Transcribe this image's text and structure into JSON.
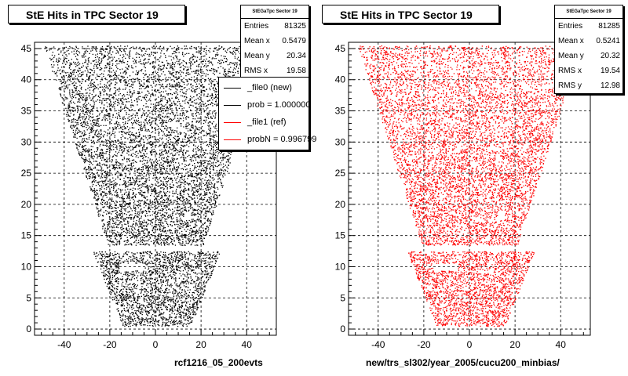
{
  "panels": [
    {
      "title": "StE Hits in TPC Sector 19",
      "stats_name": "StEGaTpc Sector 19",
      "stats": [
        {
          "label": "Entries",
          "value": "81325"
        },
        {
          "label": "Mean x",
          "value": "0.5479"
        },
        {
          "label": "Mean y",
          "value": "20.34"
        },
        {
          "label": "RMS x",
          "value": "19.58"
        }
      ],
      "xlabel": "rcf1216_05_200evts",
      "color": "#000000",
      "legend": [
        {
          "label": "_file0 (new)",
          "color": "#000000"
        },
        {
          "label": "prob = 1.000000",
          "color": "#000000"
        },
        {
          "label": "_file1 (ref)",
          "color": "#ff0000"
        },
        {
          "label": "probN = 0.996799",
          "color": "#ff0000"
        }
      ]
    },
    {
      "title": "StE Hits in TPC Sector 19",
      "stats_name": "StEGaTpc Sector 19",
      "stats": [
        {
          "label": "Entries",
          "value": "81285"
        },
        {
          "label": "Mean x",
          "value": "0.5241"
        },
        {
          "label": "Mean y",
          "value": "20.32"
        },
        {
          "label": "RMS x",
          "value": "19.54"
        },
        {
          "label": "RMS y",
          "value": "12.98"
        }
      ],
      "xlabel": "new/trs_sl302/year_2005/cucu200_minbias/",
      "color": "#ff0000"
    }
  ],
  "chart_data": [
    {
      "type": "scatter",
      "title": "StE Hits in TPC Sector 19",
      "xlim": [
        -53,
        53
      ],
      "ylim": [
        -1,
        46
      ],
      "x_ticks": [
        -40,
        -20,
        0,
        20,
        40
      ],
      "y_ticks": [
        0,
        5,
        10,
        15,
        20,
        25,
        30,
        35,
        40,
        45
      ],
      "grid": true,
      "marker_color": "#000000",
      "xlabel": "rcf1216_05_200evts",
      "ylabel": "",
      "legend_position": "top-right",
      "coverage_region": {
        "description": "trapezoidal padrow hit distribution with gap",
        "upper_rows": {
          "y_range": [
            13.5,
            45.5
          ],
          "x_halfwidth_at_bottom": 21,
          "x_halfwidth_at_top": 49
        },
        "gap": {
          "y_range": [
            12.6,
            13.6
          ]
        },
        "lower_rows": {
          "y_range": [
            0.5,
            12.5
          ],
          "x_halfwidth_at_bottom": 15,
          "x_halfwidth_at_top": 28
        }
      }
    },
    {
      "type": "scatter",
      "title": "StE Hits in TPC Sector 19",
      "xlim": [
        -53,
        53
      ],
      "ylim": [
        -1,
        46
      ],
      "x_ticks": [
        -40,
        -20,
        0,
        20,
        40
      ],
      "y_ticks": [
        0,
        5,
        10,
        15,
        20,
        25,
        30,
        35,
        40,
        45
      ],
      "grid": true,
      "marker_color": "#ff0000",
      "xlabel": "new/trs_sl302/year_2005/cucu200_minbias/",
      "ylabel": "",
      "coverage_region": {
        "description": "trapezoidal padrow hit distribution with gap",
        "upper_rows": {
          "y_range": [
            13.5,
            45.5
          ],
          "x_halfwidth_at_bottom": 21,
          "x_halfwidth_at_top": 49
        },
        "gap": {
          "y_range": [
            12.6,
            13.6
          ]
        },
        "lower_rows": {
          "y_range": [
            0.5,
            12.5
          ],
          "x_halfwidth_at_bottom": 15,
          "x_halfwidth_at_top": 28
        }
      }
    }
  ]
}
